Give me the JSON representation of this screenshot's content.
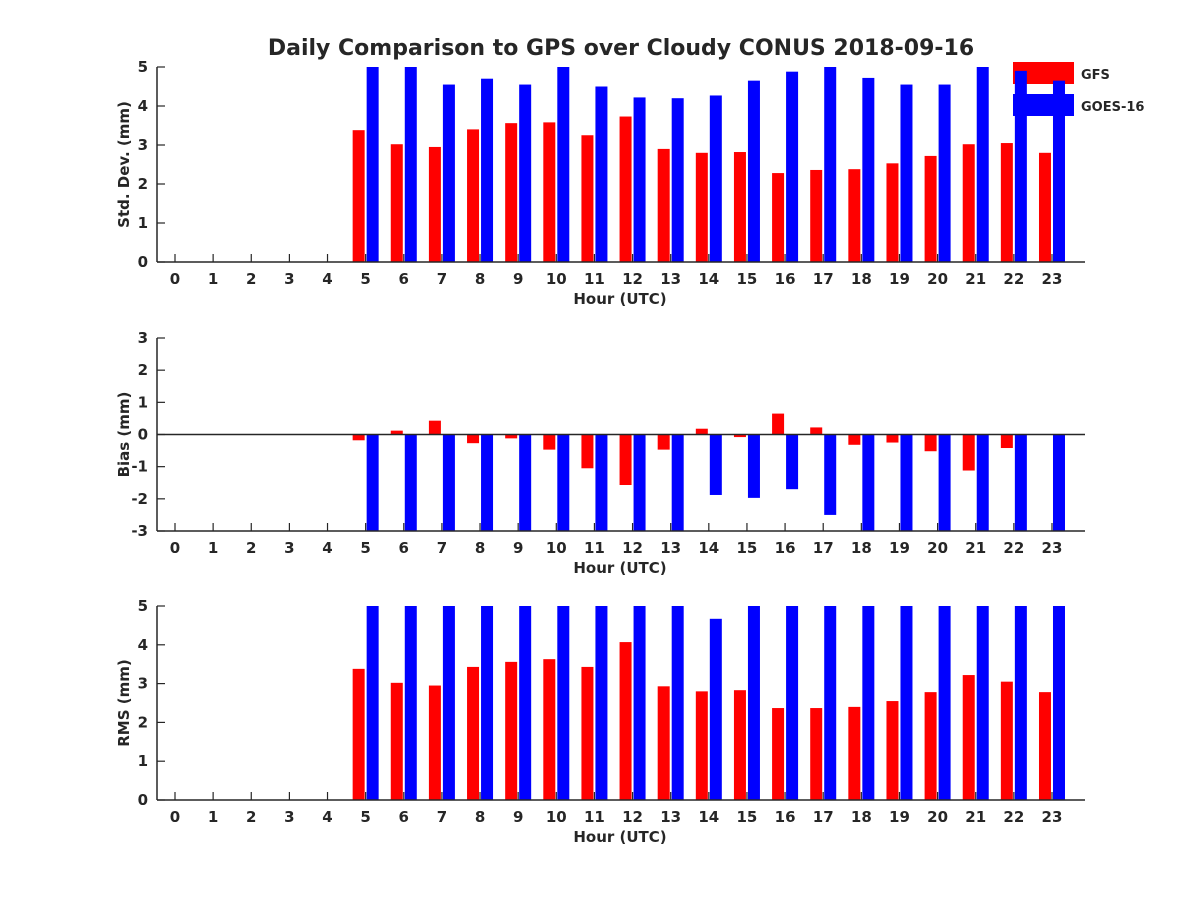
{
  "chart_data": [
    {
      "type": "bar",
      "title": "Daily Comparison to GPS over Cloudy CONUS 2018-09-16",
      "xlabel": "Hour (UTC)",
      "ylabel": "Std. Dev. (mm)",
      "ylim": [
        0,
        5
      ],
      "yticks": [
        "0",
        "1",
        "2",
        "3",
        "4",
        "5"
      ],
      "categories": [
        "0",
        "1",
        "2",
        "3",
        "4",
        "5",
        "6",
        "7",
        "8",
        "9",
        "10",
        "11",
        "12",
        "13",
        "14",
        "15",
        "16",
        "17",
        "18",
        "19",
        "20",
        "21",
        "22",
        "23"
      ],
      "series": [
        {
          "name": "GFS",
          "color": "#ff0000",
          "values": [
            null,
            null,
            null,
            null,
            null,
            3.38,
            3.02,
            2.95,
            3.4,
            3.56,
            3.58,
            3.25,
            3.73,
            2.9,
            2.8,
            2.82,
            2.28,
            2.36,
            2.38,
            2.53,
            2.72,
            3.02,
            3.05,
            2.8
          ]
        },
        {
          "name": "GOES-16",
          "color": "#0000ff",
          "values": [
            null,
            null,
            null,
            null,
            null,
            5.0,
            5.0,
            4.55,
            4.7,
            4.55,
            5.0,
            4.5,
            4.22,
            4.2,
            4.27,
            4.65,
            4.88,
            5.0,
            4.72,
            4.55,
            4.55,
            5.0,
            4.9,
            4.65
          ]
        }
      ],
      "legend": "top-right",
      "grid": false
    },
    {
      "type": "bar",
      "xlabel": "Hour (UTC)",
      "ylabel": "Bias (mm)",
      "ylim": [
        -3,
        3
      ],
      "yticks": [
        "-3",
        "-2",
        "-1",
        "0",
        "1",
        "2",
        "3"
      ],
      "zero_line": true,
      "categories": [
        "0",
        "1",
        "2",
        "3",
        "4",
        "5",
        "6",
        "7",
        "8",
        "9",
        "10",
        "11",
        "12",
        "13",
        "14",
        "15",
        "16",
        "17",
        "18",
        "19",
        "20",
        "21",
        "22",
        "23"
      ],
      "series": [
        {
          "name": "GFS",
          "color": "#ff0000",
          "values": [
            null,
            null,
            null,
            null,
            null,
            -0.18,
            0.12,
            0.43,
            -0.27,
            -0.12,
            -0.47,
            -1.05,
            -1.57,
            -0.47,
            0.18,
            -0.08,
            0.65,
            0.22,
            -0.32,
            -0.25,
            -0.52,
            -1.12,
            -0.42,
            0.0
          ]
        },
        {
          "name": "GOES-16",
          "color": "#0000ff",
          "values": [
            null,
            null,
            null,
            null,
            null,
            -3.0,
            -3.0,
            -3.0,
            -3.0,
            -3.0,
            -3.0,
            -3.0,
            -3.0,
            -3.0,
            -1.88,
            -1.97,
            -1.7,
            -2.5,
            -3.0,
            -3.0,
            -3.0,
            -3.0,
            -3.0,
            -3.0
          ]
        }
      ],
      "grid": false
    },
    {
      "type": "bar",
      "xlabel": "Hour (UTC)",
      "ylabel": "RMS (mm)",
      "ylim": [
        0,
        5
      ],
      "yticks": [
        "0",
        "1",
        "2",
        "3",
        "4",
        "5"
      ],
      "categories": [
        "0",
        "1",
        "2",
        "3",
        "4",
        "5",
        "6",
        "7",
        "8",
        "9",
        "10",
        "11",
        "12",
        "13",
        "14",
        "15",
        "16",
        "17",
        "18",
        "19",
        "20",
        "21",
        "22",
        "23"
      ],
      "series": [
        {
          "name": "GFS",
          "color": "#ff0000",
          "values": [
            null,
            null,
            null,
            null,
            null,
            3.38,
            3.02,
            2.95,
            3.43,
            3.56,
            3.63,
            3.43,
            4.07,
            2.93,
            2.8,
            2.83,
            2.37,
            2.37,
            2.4,
            2.55,
            2.78,
            3.22,
            3.05,
            2.78
          ]
        },
        {
          "name": "GOES-16",
          "color": "#0000ff",
          "values": [
            null,
            null,
            null,
            null,
            null,
            5.0,
            5.0,
            5.0,
            5.0,
            5.0,
            5.0,
            5.0,
            5.0,
            5.0,
            4.67,
            5.0,
            5.0,
            5.0,
            5.0,
            5.0,
            5.0,
            5.0,
            5.0,
            5.0
          ]
        }
      ],
      "grid": false
    }
  ]
}
